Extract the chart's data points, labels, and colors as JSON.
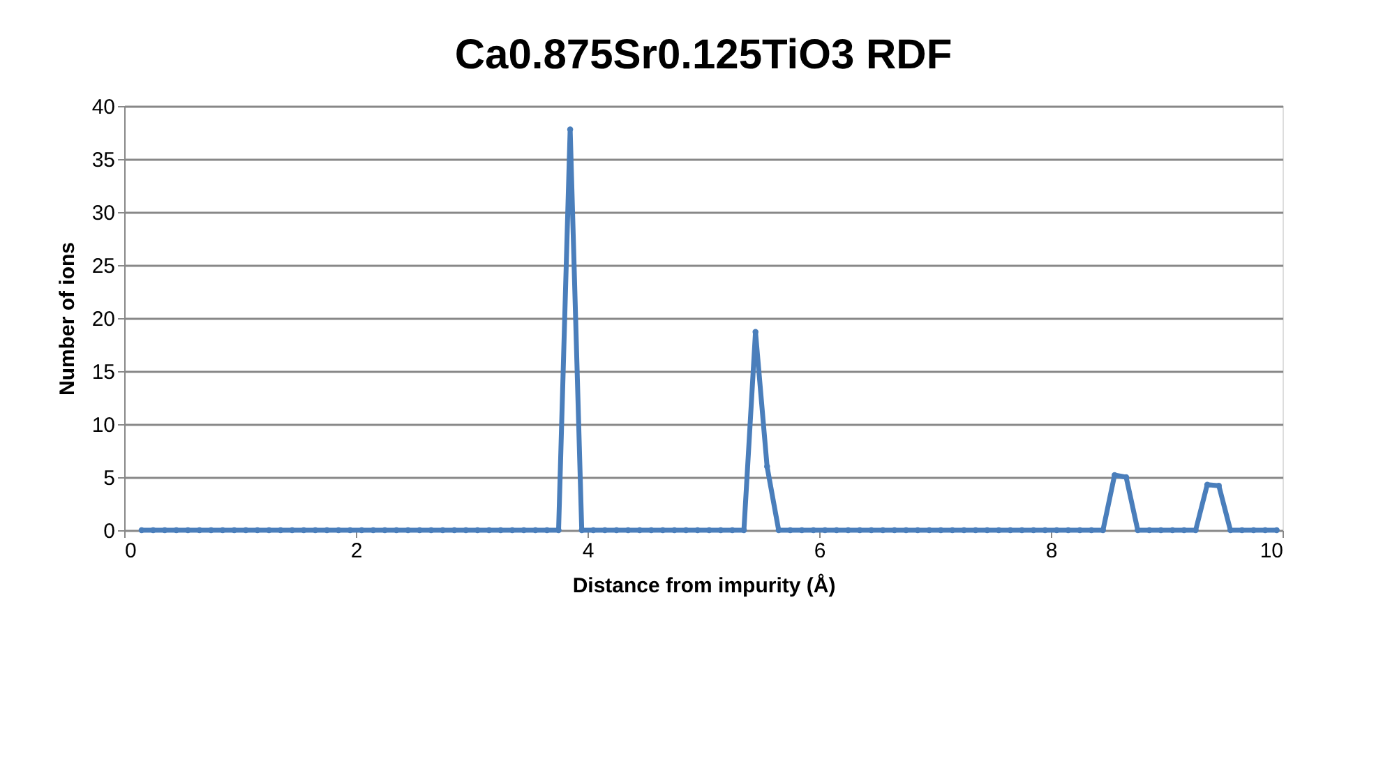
{
  "chart_data": {
    "type": "line",
    "title": "Ca0.875Sr0.125TiO3 RDF",
    "xlabel": "Distance from impurity (Å)",
    "ylabel": "Number of ions",
    "x": [
      0.15,
      0.25,
      0.35,
      0.45,
      0.55,
      0.65,
      0.75,
      0.85,
      0.95,
      1.05,
      1.15,
      1.25,
      1.35,
      1.45,
      1.55,
      1.65,
      1.75,
      1.85,
      1.95,
      2.05,
      2.15,
      2.25,
      2.35,
      2.45,
      2.55,
      2.65,
      2.75,
      2.85,
      2.95,
      3.05,
      3.15,
      3.25,
      3.35,
      3.45,
      3.55,
      3.65,
      3.75,
      3.85,
      3.95,
      4.05,
      4.15,
      4.25,
      4.35,
      4.45,
      4.55,
      4.65,
      4.75,
      4.85,
      4.95,
      5.05,
      5.15,
      5.25,
      5.35,
      5.45,
      5.55,
      5.65,
      5.75,
      5.85,
      5.95,
      6.05,
      6.15,
      6.25,
      6.35,
      6.45,
      6.55,
      6.65,
      6.75,
      6.85,
      6.95,
      7.05,
      7.15,
      7.25,
      7.35,
      7.45,
      7.55,
      7.65,
      7.75,
      7.85,
      7.95,
      8.05,
      8.15,
      8.25,
      8.35,
      8.45,
      8.55,
      8.65,
      8.75,
      8.85,
      8.95,
      9.05,
      9.15,
      9.25,
      9.35,
      9.45,
      9.55,
      9.65,
      9.75,
      9.85,
      9.95
    ],
    "series": [
      {
        "color": "#4a7ebb",
        "values": [
          0,
          0,
          0,
          0,
          0,
          0,
          0,
          0,
          0,
          0,
          0,
          0,
          0,
          0,
          0,
          0,
          0,
          0,
          0,
          0,
          0,
          0,
          0,
          0,
          0,
          0,
          0,
          0,
          0,
          0,
          0,
          0,
          0,
          0,
          0,
          0,
          0,
          37.8,
          0,
          0,
          0,
          0,
          0,
          0,
          0,
          0,
          0,
          0,
          0,
          0,
          0,
          0,
          0,
          18.7,
          6.0,
          0,
          0,
          0,
          0,
          0,
          0,
          0,
          0,
          0,
          0,
          0,
          0,
          0,
          0,
          0,
          0,
          0,
          0,
          0,
          0,
          0,
          0,
          0,
          0,
          0,
          0,
          0,
          0,
          0,
          5.2,
          5.0,
          0,
          0,
          0,
          0,
          0,
          0,
          4.3,
          4.2,
          0,
          0,
          0,
          0,
          0
        ]
      }
    ],
    "xlim": [
      0,
      10
    ],
    "xticks": [
      0,
      2,
      4,
      6,
      8,
      10
    ],
    "ylim": [
      0,
      40
    ],
    "yticks": [
      0,
      5,
      10,
      15,
      20,
      25,
      30,
      35,
      40
    ],
    "grid": "y",
    "marker": "circle",
    "line_style": "solid"
  }
}
